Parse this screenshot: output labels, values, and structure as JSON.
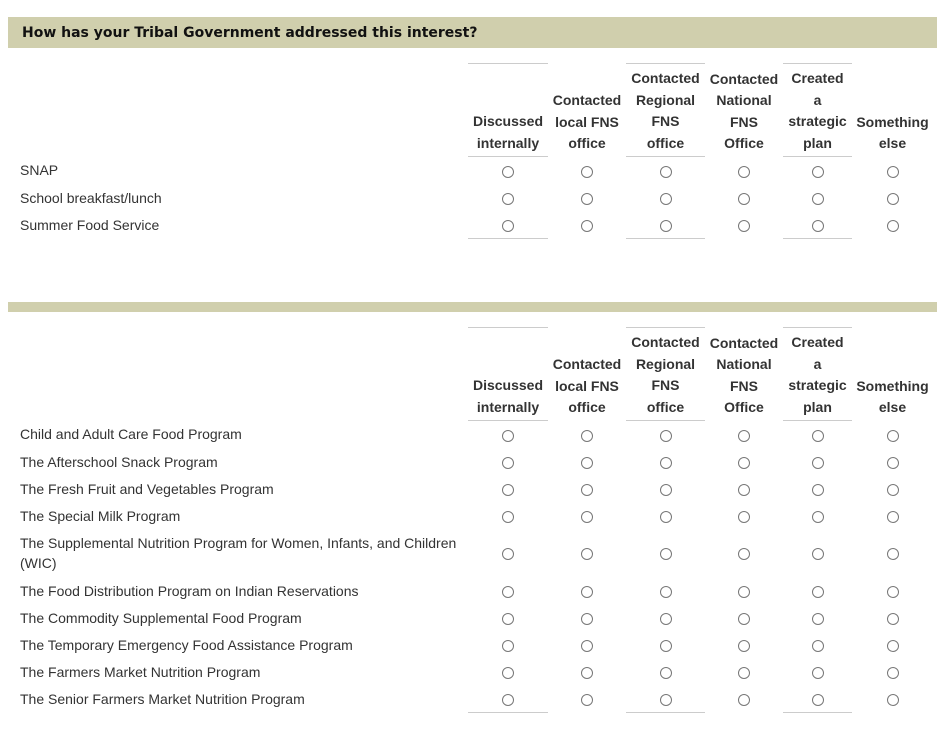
{
  "question": "How has your Tribal Government addressed this interest?",
  "columns": [
    [
      "Discussed",
      "internally"
    ],
    [
      "Contacted",
      "local FNS",
      "office"
    ],
    [
      "Contacted",
      "Regional",
      "FNS",
      "office"
    ],
    [
      "Contacted",
      "National",
      "FNS",
      "Office"
    ],
    [
      "Created",
      "a",
      "strategic",
      "plan"
    ],
    [
      "Something",
      "else"
    ]
  ],
  "table1_rows": [
    "SNAP",
    "School breakfast/lunch",
    "Summer Food Service"
  ],
  "table2_rows": [
    "Child and Adult Care Food Program",
    "The Afterschool Snack Program",
    "The Fresh Fruit and Vegetables Program",
    "The Special Milk Program",
    "The Supplemental Nutrition Program for Women, Infants, and Children (WIC)",
    "The Food Distribution Program on Indian Reservations",
    "The Commodity Supplemental Food Program",
    "The Temporary Emergency Food Assistance Program",
    "The Farmers Market Nutrition Program",
    "The Senior Farmers Market Nutrition Program"
  ],
  "colors": {
    "header_bar": "#d0cfad"
  }
}
